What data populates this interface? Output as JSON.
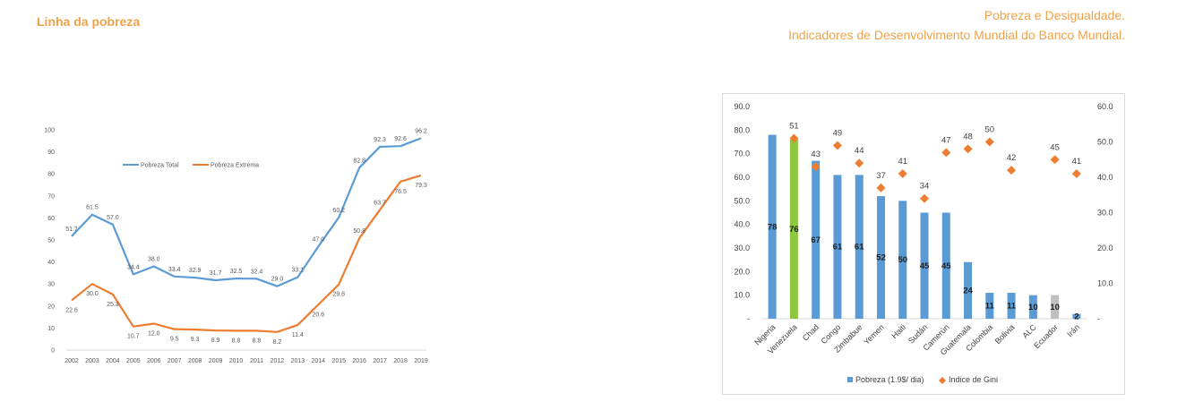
{
  "header": {
    "left_title": "Linha da pobreza",
    "right_line1": "Pobreza e Desigualdade.",
    "right_line2": "Indicadores de Desenvolvimento Mundial do Banco Mundial."
  },
  "colors": {
    "accent": "#f0a24a",
    "blue": "#5b9bd5",
    "orange": "#ed7d31",
    "green": "#8dc63f",
    "grey": "#bfbfbf"
  },
  "chart_data": [
    {
      "type": "line",
      "x": [
        "2002",
        "2003",
        "2004",
        "2005",
        "2006",
        "2007",
        "2008",
        "2009",
        "2010",
        "2011",
        "2012",
        "2013",
        "2014",
        "2015",
        "2016",
        "2017",
        "2018",
        "2019"
      ],
      "ylim": [
        0,
        100
      ],
      "yticks": [
        "0",
        "10",
        "20",
        "30",
        "40",
        "50",
        "60",
        "70",
        "80",
        "90",
        "100"
      ],
      "legend_position": "top-center",
      "grid": false,
      "series": [
        {
          "name": "Pobreza Total",
          "color": "#5b9bd5",
          "values": [
            51.7,
            61.5,
            57.0,
            34.4,
            38.0,
            33.4,
            32.9,
            31.7,
            32.5,
            32.4,
            29.0,
            33.1,
            47.0,
            60.2,
            82.8,
            92.3,
            92.6,
            96.2
          ],
          "labels": [
            "51.7",
            "61.5",
            "57.0",
            "34.4",
            "38.0",
            "33.4",
            "32.9",
            "31.7",
            "32.5",
            "32.4",
            "29.0",
            "33.1",
            "47.0",
            "60.2",
            "82.8",
            "92.3",
            "92.6",
            "96.2"
          ]
        },
        {
          "name": "Pobreza Extrema",
          "color": "#ed7d31",
          "values": [
            22.6,
            30.0,
            25.3,
            10.7,
            12.0,
            9.5,
            9.3,
            8.9,
            8.8,
            8.8,
            8.2,
            11.4,
            20.6,
            29.8,
            50.8,
            63.7,
            76.5,
            79.3
          ],
          "labels": [
            "22.6",
            "30.0",
            "25.3",
            "10.7",
            "12.0",
            "9.5",
            "9.3",
            "8.9",
            "8.8",
            "8.8",
            "8.2",
            "11.4",
            "20.6",
            "29.8",
            "50.8",
            "63.7",
            "76.5",
            "79.3"
          ]
        }
      ]
    },
    {
      "type": "bar",
      "categories": [
        "Nigeria",
        "Venezuela",
        "Chad",
        "Congo",
        "Zimbabue",
        "Yemen",
        "Haiti",
        "Sudán",
        "Camerún",
        "Guatemala",
        "Colombia",
        "Bolivia",
        "ALC",
        "Ecuador",
        "Irán"
      ],
      "ylim": [
        0,
        90
      ],
      "y2lim": [
        0,
        60
      ],
      "yticks": [
        "-",
        "10.0",
        "20.0",
        "30.0",
        "40.0",
        "50.0",
        "60.0",
        "70.0",
        "80.0",
        "90.0"
      ],
      "y2ticks": [
        "-",
        "10.0",
        "20.0",
        "30.0",
        "40.0",
        "50.0",
        "60.0"
      ],
      "legend_position": "bottom",
      "grid": false,
      "series": [
        {
          "name": "Pobreza (1.9$/ dia)",
          "axis": "left",
          "values": [
            78,
            76,
            67,
            61,
            61,
            52,
            50,
            45,
            45,
            24,
            11,
            11,
            10,
            10,
            2
          ],
          "labels": [
            "78",
            "76",
            "67",
            "61",
            "61",
            "52",
            "50",
            "45",
            "45",
            "24",
            "11",
            "11",
            "10",
            "10",
            "2"
          ],
          "colors": [
            "#5b9bd5",
            "#8dc63f",
            "#5b9bd5",
            "#5b9bd5",
            "#5b9bd5",
            "#5b9bd5",
            "#5b9bd5",
            "#5b9bd5",
            "#5b9bd5",
            "#5b9bd5",
            "#5b9bd5",
            "#5b9bd5",
            "#5b9bd5",
            "#bfbfbf",
            "#5b9bd5"
          ]
        },
        {
          "name": "Indice de Gini",
          "axis": "right",
          "color": "#ed7d31",
          "values": [
            null,
            51,
            43,
            49,
            44,
            37,
            41,
            34,
            47,
            48,
            50,
            42,
            null,
            45,
            41
          ],
          "labels": [
            "",
            "51",
            "43",
            "49",
            "44",
            "37",
            "41",
            "34",
            "47",
            "48",
            "50",
            "42",
            "",
            "45",
            "41"
          ]
        }
      ]
    }
  ]
}
